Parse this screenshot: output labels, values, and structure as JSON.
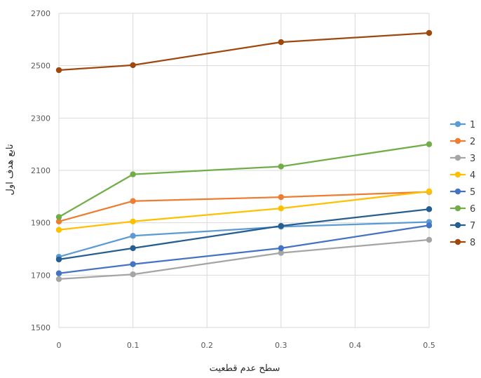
{
  "chart_data": {
    "type": "line",
    "xlabel": "سطح عدم قطعیت",
    "ylabel": "تابع هدف اول",
    "xlim": [
      0,
      0.5
    ],
    "ylim": [
      1500,
      2700
    ],
    "x_ticks": [
      0,
      0.1,
      0.2,
      0.3,
      0.4,
      0.5
    ],
    "x_tick_labels": [
      "0",
      "0.1",
      "0.2",
      "0.3",
      "0.4",
      "0.5"
    ],
    "y_ticks": [
      1500,
      1700,
      1900,
      2100,
      2300,
      2500,
      2700
    ],
    "y_tick_labels": [
      "1500",
      "1700",
      "1900",
      "2100",
      "2300",
      "2500",
      "2700"
    ],
    "grid": true,
    "legend_position": "right",
    "x": [
      0,
      0.1,
      0.3,
      0.5
    ],
    "series": [
      {
        "name": "1",
        "color": "#5B9BD5",
        "values": [
          1770,
          1850,
          1885,
          1903
        ]
      },
      {
        "name": "2",
        "color": "#ED7D31",
        "values": [
          1905,
          1983,
          1998,
          2018
        ]
      },
      {
        "name": "3",
        "color": "#A5A5A5",
        "values": [
          1685,
          1703,
          1785,
          1835
        ]
      },
      {
        "name": "4",
        "color": "#FFC000",
        "values": [
          1873,
          1905,
          1955,
          2020
        ]
      },
      {
        "name": "5",
        "color": "#4472C4",
        "values": [
          1707,
          1742,
          1803,
          1890
        ]
      },
      {
        "name": "6",
        "color": "#70AD47",
        "values": [
          1922,
          2085,
          2115,
          2200
        ]
      },
      {
        "name": "7",
        "color": "#255E91",
        "values": [
          1760,
          1803,
          1888,
          1952
        ]
      },
      {
        "name": "8",
        "color": "#9E480E",
        "values": [
          2483,
          2502,
          2590,
          2625
        ]
      }
    ]
  }
}
